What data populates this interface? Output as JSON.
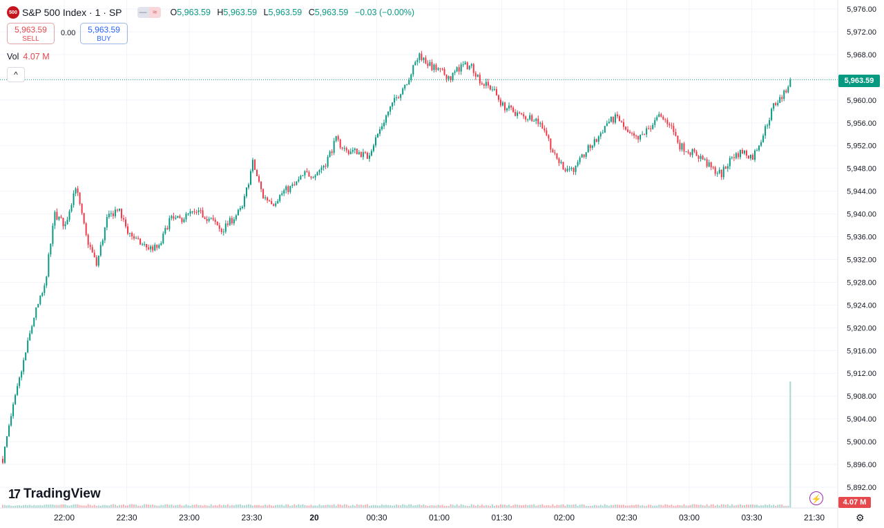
{
  "header": {
    "symbol_badge": "500",
    "title": "S&P 500 Index · 1 · SP",
    "pill_left_icon": "minus-icon",
    "pill_right_icon": "wave-icon",
    "pill_right_glyph": "≈",
    "ohlc": {
      "o_label": "O",
      "o_value": "5,963.59",
      "h_label": "H",
      "h_value": "5,963.59",
      "l_label": "L",
      "l_value": "5,963.59",
      "c_label": "C",
      "c_value": "5,963.59",
      "change": "−0.03 (−0.00%)"
    }
  },
  "trade": {
    "sell_price": "5,963.59",
    "sell_label": "SELL",
    "spread": "0.00",
    "buy_price": "5,963.59",
    "buy_label": "BUY"
  },
  "volume_legend": {
    "label": "Vol",
    "value": "4.07 M"
  },
  "collapse_glyph": "^",
  "last_price_tag": "5,963.59",
  "volume_tag": "4.07 M",
  "logo_mark": "17",
  "logo_text": "TradingView",
  "bolt_icon": "lightning-icon",
  "settings_icon": "gear-icon",
  "colors": {
    "up": "#089981",
    "down": "#f23645",
    "grid": "#f0f3fa",
    "accent": "#089981"
  },
  "chart_data": {
    "type": "candlestick",
    "title": "S&P 500 Index · 1 · SP",
    "interval": "1 minute",
    "ylim": [
      5888,
      5978
    ],
    "y_ticks": [
      "5,976.00",
      "5,972.00",
      "5,968.00",
      "5,964.00",
      "5,960.00",
      "5,956.00",
      "5,952.00",
      "5,948.00",
      "5,944.00",
      "5,940.00",
      "5,936.00",
      "5,932.00",
      "5,928.00",
      "5,924.00",
      "5,920.00",
      "5,916.00",
      "5,912.00",
      "5,908.00",
      "5,904.00",
      "5,900.00",
      "5,896.00",
      "5,892.00"
    ],
    "x_ticks": [
      "22:00",
      "22:30",
      "23:00",
      "23:30",
      "20",
      "00:30",
      "01:00",
      "01:30",
      "02:00",
      "02:30",
      "03:00",
      "03:30",
      "21:30"
    ],
    "last_price": 5963.59,
    "last_volume": "4.07 M",
    "close_path": [
      {
        "x": "21:45",
        "y": 5897
      },
      {
        "x": "21:50",
        "y": 5906
      },
      {
        "x": "21:55",
        "y": 5914
      },
      {
        "x": "22:00",
        "y": 5922
      },
      {
        "x": "22:05",
        "y": 5927
      },
      {
        "x": "22:10",
        "y": 5940
      },
      {
        "x": "22:15",
        "y": 5938
      },
      {
        "x": "22:20",
        "y": 5945
      },
      {
        "x": "22:25",
        "y": 5936
      },
      {
        "x": "22:30",
        "y": 5931
      },
      {
        "x": "22:35",
        "y": 5939
      },
      {
        "x": "22:40",
        "y": 5941
      },
      {
        "x": "22:45",
        "y": 5937
      },
      {
        "x": "22:50",
        "y": 5935
      },
      {
        "x": "22:55",
        "y": 5934
      },
      {
        "x": "23:00",
        "y": 5934
      },
      {
        "x": "23:05",
        "y": 5939
      },
      {
        "x": "23:10",
        "y": 5939
      },
      {
        "x": "23:15",
        "y": 5940
      },
      {
        "x": "23:20",
        "y": 5940
      },
      {
        "x": "23:25",
        "y": 5939
      },
      {
        "x": "23:30",
        "y": 5937
      },
      {
        "x": "23:35",
        "y": 5939
      },
      {
        "x": "23:40",
        "y": 5941
      },
      {
        "x": "23:45",
        "y": 5949
      },
      {
        "x": "23:50",
        "y": 5943
      },
      {
        "x": "23:55",
        "y": 5942
      },
      {
        "x": "00:00",
        "y": 5944
      },
      {
        "x": "00:05",
        "y": 5945
      },
      {
        "x": "00:10",
        "y": 5947
      },
      {
        "x": "00:15",
        "y": 5947
      },
      {
        "x": "00:20",
        "y": 5949
      },
      {
        "x": "00:25",
        "y": 5953
      },
      {
        "x": "00:30",
        "y": 5951
      },
      {
        "x": "00:35",
        "y": 5951
      },
      {
        "x": "00:40",
        "y": 5950
      },
      {
        "x": "00:45",
        "y": 5954
      },
      {
        "x": "00:50",
        "y": 5958
      },
      {
        "x": "00:55",
        "y": 5961
      },
      {
        "x": "01:00",
        "y": 5964
      },
      {
        "x": "01:05",
        "y": 5968
      },
      {
        "x": "01:10",
        "y": 5966
      },
      {
        "x": "01:15",
        "y": 5965
      },
      {
        "x": "01:20",
        "y": 5964
      },
      {
        "x": "01:25",
        "y": 5966
      },
      {
        "x": "01:30",
        "y": 5966
      },
      {
        "x": "01:35",
        "y": 5963
      },
      {
        "x": "01:40",
        "y": 5962
      },
      {
        "x": "01:45",
        "y": 5959
      },
      {
        "x": "01:50",
        "y": 5958
      },
      {
        "x": "01:55",
        "y": 5957
      },
      {
        "x": "02:00",
        "y": 5957
      },
      {
        "x": "02:05",
        "y": 5955
      },
      {
        "x": "02:10",
        "y": 5950
      },
      {
        "x": "02:15",
        "y": 5948
      },
      {
        "x": "02:20",
        "y": 5948
      },
      {
        "x": "02:25",
        "y": 5951
      },
      {
        "x": "02:30",
        "y": 5953
      },
      {
        "x": "02:35",
        "y": 5956
      },
      {
        "x": "02:40",
        "y": 5957
      },
      {
        "x": "02:45",
        "y": 5954
      },
      {
        "x": "02:50",
        "y": 5953
      },
      {
        "x": "02:55",
        "y": 5955
      },
      {
        "x": "03:00",
        "y": 5957
      },
      {
        "x": "03:05",
        "y": 5956
      },
      {
        "x": "03:10",
        "y": 5952
      },
      {
        "x": "03:15",
        "y": 5951
      },
      {
        "x": "03:20",
        "y": 5950
      },
      {
        "x": "03:25",
        "y": 5948
      },
      {
        "x": "03:30",
        "y": 5947
      },
      {
        "x": "03:35",
        "y": 5950
      },
      {
        "x": "03:40",
        "y": 5951
      },
      {
        "x": "03:45",
        "y": 5950
      },
      {
        "x": "03:50",
        "y": 5954
      },
      {
        "x": "03:55",
        "y": 5959
      },
      {
        "x": "04:00",
        "y": 5961
      },
      {
        "x": "04:03",
        "y": 5963.59
      }
    ]
  }
}
